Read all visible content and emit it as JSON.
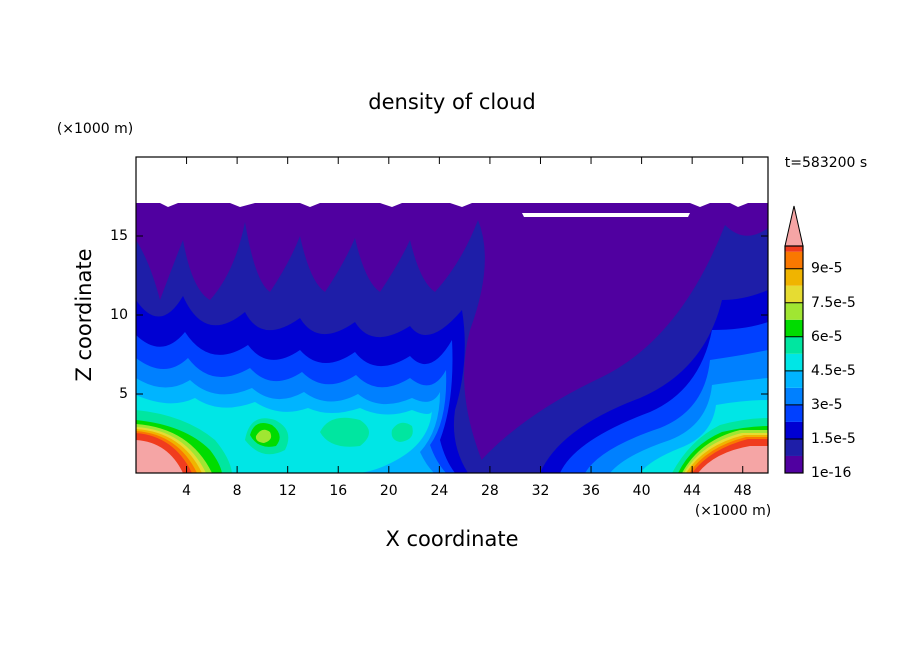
{
  "chart_data": {
    "type": "contour",
    "title": "density of cloud",
    "x_label": "X coordinate",
    "y_label": "Z coordinate",
    "x_unit": "(×1000 m)",
    "y_unit": "(×1000 m)",
    "time_label": "t=583200 s",
    "xlim": [
      0,
      50
    ],
    "xticks": [
      4,
      8,
      12,
      16,
      20,
      24,
      28,
      32,
      36,
      40,
      44,
      48
    ],
    "ylim": [
      0,
      20
    ],
    "yticks": [
      5,
      10,
      15
    ],
    "colorbar": {
      "clim": [
        0,
        0.0001
      ],
      "levels": [
        0,
        7.5e-06,
        1.5e-05,
        2.25e-05,
        3e-05,
        3.75e-05,
        4.5e-05,
        5.25e-05,
        6e-05,
        6.75e-05,
        7.5e-05,
        8.25e-05,
        9e-05,
        9.75e-05
      ],
      "colors": [
        "#5000a0",
        "#1e1ea8",
        "#0000d2",
        "#0040ff",
        "#0080ff",
        "#00b4ff",
        "#00e6e6",
        "#00e6a0",
        "#00dc00",
        "#a0e632",
        "#e6dc32",
        "#f0b400",
        "#fa7800",
        "#f03c1e"
      ],
      "over_color": "#f5a5a5",
      "ticks": [
        {
          "value": 1e-16,
          "label": "1e-16"
        },
        {
          "value": 1.5e-05,
          "label": "1.5e-5"
        },
        {
          "value": 3e-05,
          "label": "3e-5"
        },
        {
          "value": 4.5e-05,
          "label": "4.5e-5"
        },
        {
          "value": 6e-05,
          "label": "6e-5"
        },
        {
          "value": 7.5e-05,
          "label": "7.5e-5"
        },
        {
          "value": 9e-05,
          "label": "9e-5"
        }
      ]
    }
  }
}
